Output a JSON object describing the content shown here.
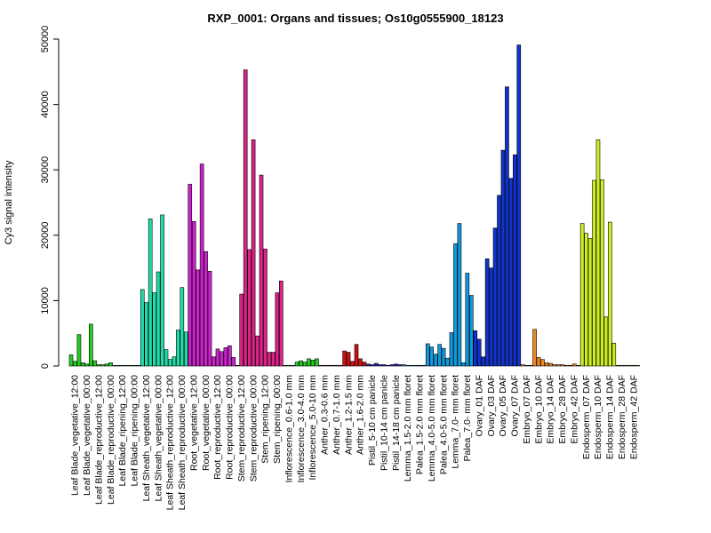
{
  "chart_data": {
    "type": "bar",
    "title": "RXP_0001: Organs and tissues; Os10g0555900_18123",
    "xlabel": "",
    "ylabel": "Cy3 signal intensity",
    "ylim": [
      0,
      50000
    ],
    "yticks": [
      0,
      10000,
      20000,
      30000,
      40000,
      50000
    ],
    "groups": [
      {
        "label": "Leaf Blade_vegetative_12:00",
        "color": "#22cc22",
        "values": [
          1700,
          700,
          4800
        ]
      },
      {
        "label": "Leaf Blade_vegetative_00:00",
        "color": "#22cc22",
        "values": [
          500,
          300,
          6400
        ]
      },
      {
        "label": "Leaf Blade_reproductive_12:00",
        "color": "#22cc22",
        "values": [
          800,
          200,
          200
        ]
      },
      {
        "label": "Leaf Blade_reproductive_00:00",
        "color": "#22cc22",
        "values": [
          300,
          500,
          0
        ]
      },
      {
        "label": "Leaf Blade_ripening_12:00",
        "color": "#22cc22",
        "values": [
          100,
          100,
          100
        ]
      },
      {
        "label": "Leaf Blade_ripening_00:00",
        "color": "#22cc22",
        "values": [
          100,
          100,
          100
        ]
      },
      {
        "label": "Leaf Sheath_vegetative_12:00",
        "color": "#22ddaa",
        "values": [
          11700,
          9700,
          22500
        ]
      },
      {
        "label": "Leaf Sheath_vegetative_00:00",
        "color": "#22ddaa",
        "values": [
          11200,
          14400,
          23100
        ]
      },
      {
        "label": "Leaf Sheath_reproductive_12:00",
        "color": "#22ddaa",
        "values": [
          2500,
          1000,
          1400
        ]
      },
      {
        "label": "Leaf Sheath_reproductive_00:00",
        "color": "#22ddaa",
        "values": [
          5500,
          12000,
          5200
        ]
      },
      {
        "label": "Root_vegetative_12:00",
        "color": "#cc22cc",
        "values": [
          27800,
          22100,
          14700
        ]
      },
      {
        "label": "Root_vegetative_00:00",
        "color": "#cc22cc",
        "values": [
          30900,
          17500,
          14500
        ]
      },
      {
        "label": "Root_reproductive_12:00",
        "color": "#cc22cc",
        "values": [
          1400,
          2600,
          2200
        ]
      },
      {
        "label": "Root_reproductive_00:00",
        "color": "#cc22cc",
        "values": [
          2800,
          3100,
          1300
        ]
      },
      {
        "label": "Stem_reproductive_12:00",
        "color": "#dd2288",
        "values": [
          100,
          11000,
          45300
        ]
      },
      {
        "label": "Stem_reproductive_00:00",
        "color": "#dd2288",
        "values": [
          17800,
          34600,
          4600
        ]
      },
      {
        "label": "Stem_ripening_12:00",
        "color": "#dd2288",
        "values": [
          29200,
          17900,
          2100
        ]
      },
      {
        "label": "Stem_ripening_00:00",
        "color": "#dd2288",
        "values": [
          2100,
          11200,
          13000
        ]
      },
      {
        "label": "Inflorescence_0.6-1.0 mm",
        "color": "#22cc22",
        "values": [
          100,
          100,
          100
        ]
      },
      {
        "label": "Inflorescence_3.0-4.0 mm",
        "color": "#22cc22",
        "values": [
          600,
          800,
          600
        ]
      },
      {
        "label": "Inflorescence_5.0-10 mm",
        "color": "#22cc22",
        "values": [
          1100,
          900,
          1100
        ]
      },
      {
        "label": "Anther_0.3-0.6 mm",
        "color": "#cc1111",
        "values": [
          100,
          100,
          100
        ]
      },
      {
        "label": "Anther_0.7-1.0 mm",
        "color": "#cc1111",
        "values": [
          100,
          100,
          100
        ]
      },
      {
        "label": "Anther_1.2-1.5 mm",
        "color": "#cc1111",
        "values": [
          2300,
          2100,
          700
        ]
      },
      {
        "label": "Anther_1.6-2.0 mm",
        "color": "#cc1111",
        "values": [
          3300,
          1100,
          600
        ]
      },
      {
        "label": "Pistil_5-10 cm panicle",
        "color": "#2222cc",
        "values": [
          300,
          200,
          400
        ]
      },
      {
        "label": "Pistil_10-14 cm panicle",
        "color": "#2222cc",
        "values": [
          200,
          200,
          100
        ]
      },
      {
        "label": "Pistil_14-18 cm panicle",
        "color": "#2222cc",
        "values": [
          200,
          300,
          200
        ]
      },
      {
        "label": "Lemma_1.5-2.0 mm floret",
        "color": "#1199dd",
        "values": [
          200,
          100,
          100
        ]
      },
      {
        "label": "Palea_1.5-2.0 mm floret",
        "color": "#1199dd",
        "values": [
          100,
          100,
          100
        ]
      },
      {
        "label": "Lemma_4.0-5.0 mm floret",
        "color": "#1199dd",
        "values": [
          3400,
          2900,
          1800
        ]
      },
      {
        "label": "Palea_4.0-5.0 mm floret",
        "color": "#1199dd",
        "values": [
          3300,
          2700,
          1200
        ]
      },
      {
        "label": "Lemma_7.0- mm floret",
        "color": "#1199dd",
        "values": [
          5100,
          18700,
          21800
        ]
      },
      {
        "label": "Palea_7.0- mm floret",
        "color": "#1199dd",
        "values": [
          500,
          14200,
          10800
        ]
      },
      {
        "label": "Ovary_01 DAF",
        "color": "#1133cc",
        "values": [
          5400,
          4100,
          1400
        ]
      },
      {
        "label": "Ovary_03 DAF",
        "color": "#1133cc",
        "values": [
          16400,
          15000,
          21100
        ]
      },
      {
        "label": "Ovary_05 DAF",
        "color": "#1133cc",
        "values": [
          26100,
          33000,
          42700
        ]
      },
      {
        "label": "Ovary_07 DAF",
        "color": "#1133cc",
        "values": [
          28700,
          32300,
          49100
        ]
      },
      {
        "label": "Embryo_07 DAF",
        "color": "#ee8822",
        "values": [
          200,
          100,
          100
        ]
      },
      {
        "label": "Embryo_10 DAF",
        "color": "#ee8822",
        "values": [
          5600,
          1300,
          1000
        ]
      },
      {
        "label": "Embryo_14 DAF",
        "color": "#ee8822",
        "values": [
          500,
          400,
          200
        ]
      },
      {
        "label": "Embryo_28 DAF",
        "color": "#ee8822",
        "values": [
          200,
          200,
          100
        ]
      },
      {
        "label": "Embryo_42 DAF",
        "color": "#ee8822",
        "values": [
          100,
          300,
          100
        ]
      },
      {
        "label": "Endosperm_07 DAF",
        "color": "#ccee22",
        "values": [
          21800,
          20300,
          19500
        ]
      },
      {
        "label": "Endosperm_10 DAF",
        "color": "#ccee22",
        "values": [
          28400,
          34600,
          28500
        ]
      },
      {
        "label": "Endosperm_14 DAF",
        "color": "#ccee22",
        "values": [
          7500,
          22000,
          3500
        ]
      },
      {
        "label": "Endosperm_28 DAF",
        "color": "#ccee22",
        "values": [
          100,
          100,
          100
        ]
      },
      {
        "label": "Endosperm_42 DAF",
        "color": "#ccee22",
        "values": [
          100,
          100,
          100
        ]
      }
    ]
  }
}
